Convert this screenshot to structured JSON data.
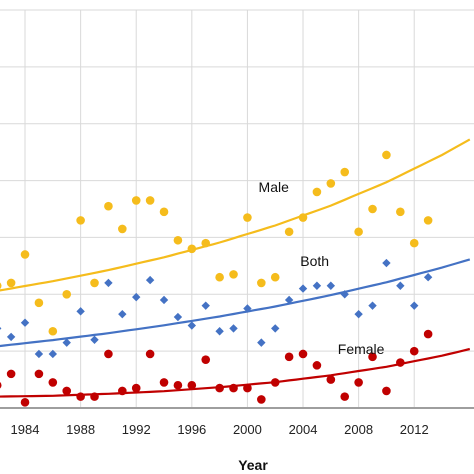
{
  "chart_data": {
    "type": "scatter",
    "xlabel": "Year",
    "ylabel": "",
    "title": "",
    "xlim": [
      1982.2,
      2016.3
    ],
    "ylim": [
      0,
      14
    ],
    "grid": true,
    "x_ticks": [
      1984,
      1988,
      1992,
      1996,
      2000,
      2004,
      2008,
      2012
    ],
    "y_gridlines": [
      0,
      2,
      4,
      6,
      8,
      10,
      12,
      14
    ],
    "series": [
      {
        "name": "Male",
        "color": "#f5bc1c",
        "marker": "circle",
        "points": [
          [
            1982,
            4.3
          ],
          [
            1983,
            4.4
          ],
          [
            1984,
            5.4
          ],
          [
            1985,
            3.7
          ],
          [
            1986,
            2.7
          ],
          [
            1987,
            4.0
          ],
          [
            1988,
            6.6
          ],
          [
            1989,
            4.4
          ],
          [
            1990,
            7.1
          ],
          [
            1991,
            6.3
          ],
          [
            1992,
            7.3
          ],
          [
            1993,
            7.3
          ],
          [
            1994,
            6.9
          ],
          [
            1995,
            5.9
          ],
          [
            1996,
            5.6
          ],
          [
            1997,
            5.8
          ],
          [
            1998,
            4.6
          ],
          [
            1999,
            4.7
          ],
          [
            2000,
            6.7
          ],
          [
            2001,
            4.4
          ],
          [
            2002,
            4.6
          ],
          [
            2003,
            6.2
          ],
          [
            2004,
            6.7
          ],
          [
            2005,
            7.6
          ],
          [
            2006,
            7.9
          ],
          [
            2007,
            8.3
          ],
          [
            2008,
            6.2
          ],
          [
            2009,
            7.0
          ],
          [
            2010,
            8.9
          ],
          [
            2011,
            6.9
          ],
          [
            2012,
            5.8
          ],
          [
            2013,
            6.6
          ]
        ],
        "trend": [
          [
            1982,
            4.12
          ],
          [
            1986,
            4.46
          ],
          [
            1990,
            4.85
          ],
          [
            1994,
            5.3
          ],
          [
            1998,
            5.82
          ],
          [
            2002,
            6.42
          ],
          [
            2006,
            7.12
          ],
          [
            2010,
            7.94
          ],
          [
            2014,
            8.9
          ],
          [
            2016.3,
            9.53
          ]
        ]
      },
      {
        "name": "Both",
        "color": "#4472c4",
        "marker": "diamond",
        "points": [
          [
            1982,
            2.8
          ],
          [
            1983,
            2.5
          ],
          [
            1984,
            3.0
          ],
          [
            1985,
            1.9
          ],
          [
            1986,
            1.9
          ],
          [
            1987,
            2.3
          ],
          [
            1988,
            3.4
          ],
          [
            1989,
            2.4
          ],
          [
            1990,
            4.4
          ],
          [
            1991,
            3.3
          ],
          [
            1992,
            3.9
          ],
          [
            1993,
            4.5
          ],
          [
            1994,
            3.8
          ],
          [
            1995,
            3.2
          ],
          [
            1996,
            2.9
          ],
          [
            1997,
            3.6
          ],
          [
            1998,
            2.7
          ],
          [
            1999,
            2.8
          ],
          [
            2000,
            3.5
          ],
          [
            2001,
            2.3
          ],
          [
            2002,
            2.8
          ],
          [
            2003,
            3.8
          ],
          [
            2004,
            4.2
          ],
          [
            2005,
            4.3
          ],
          [
            2006,
            4.3
          ],
          [
            2007,
            4.0
          ],
          [
            2008,
            3.3
          ],
          [
            2009,
            3.6
          ],
          [
            2010,
            5.1
          ],
          [
            2011,
            4.3
          ],
          [
            2012,
            3.6
          ],
          [
            2013,
            4.6
          ]
        ],
        "trend": [
          [
            1982,
            2.17
          ],
          [
            1986,
            2.39
          ],
          [
            1990,
            2.63
          ],
          [
            1994,
            2.91
          ],
          [
            1998,
            3.22
          ],
          [
            2002,
            3.57
          ],
          [
            2006,
            3.97
          ],
          [
            2010,
            4.42
          ],
          [
            2014,
            4.94
          ],
          [
            2016.3,
            5.27
          ]
        ]
      },
      {
        "name": "Female",
        "color": "#c00000",
        "marker": "circle",
        "points": [
          [
            1982,
            0.8
          ],
          [
            1983,
            1.2
          ],
          [
            1984,
            0.2
          ],
          [
            1985,
            1.2
          ],
          [
            1986,
            0.9
          ],
          [
            1987,
            0.6
          ],
          [
            1988,
            0.4
          ],
          [
            1989,
            0.4
          ],
          [
            1990,
            1.9
          ],
          [
            1991,
            0.6
          ],
          [
            1992,
            0.7
          ],
          [
            1993,
            1.9
          ],
          [
            1994,
            0.9
          ],
          [
            1995,
            0.8
          ],
          [
            1996,
            0.8
          ],
          [
            1997,
            1.7
          ],
          [
            1998,
            0.7
          ],
          [
            1999,
            0.7
          ],
          [
            2000,
            0.7
          ],
          [
            2001,
            0.3
          ],
          [
            2002,
            0.9
          ],
          [
            2003,
            1.8
          ],
          [
            2004,
            1.9
          ],
          [
            2005,
            1.5
          ],
          [
            2006,
            1.0
          ],
          [
            2007,
            0.4
          ],
          [
            2008,
            0.9
          ],
          [
            2009,
            1.8
          ],
          [
            2010,
            0.6
          ],
          [
            2011,
            1.6
          ],
          [
            2012,
            2.0
          ],
          [
            2013,
            2.6
          ]
        ],
        "trend": [
          [
            1982,
            0.4
          ],
          [
            1986,
            0.43
          ],
          [
            1990,
            0.5
          ],
          [
            1994,
            0.59
          ],
          [
            1998,
            0.73
          ],
          [
            2002,
            0.91
          ],
          [
            2006,
            1.15
          ],
          [
            2010,
            1.45
          ],
          [
            2014,
            1.84
          ],
          [
            2016.3,
            2.11
          ]
        ]
      }
    ],
    "annotations": [
      {
        "text": "Male",
        "series": "Male",
        "x": 2000.8,
        "y": 7.6
      },
      {
        "text": "Both",
        "series": "Both",
        "x": 2003.8,
        "y": 5.0
      },
      {
        "text": "Female",
        "series": "Female",
        "x": 2006.5,
        "y": 1.9
      }
    ]
  }
}
